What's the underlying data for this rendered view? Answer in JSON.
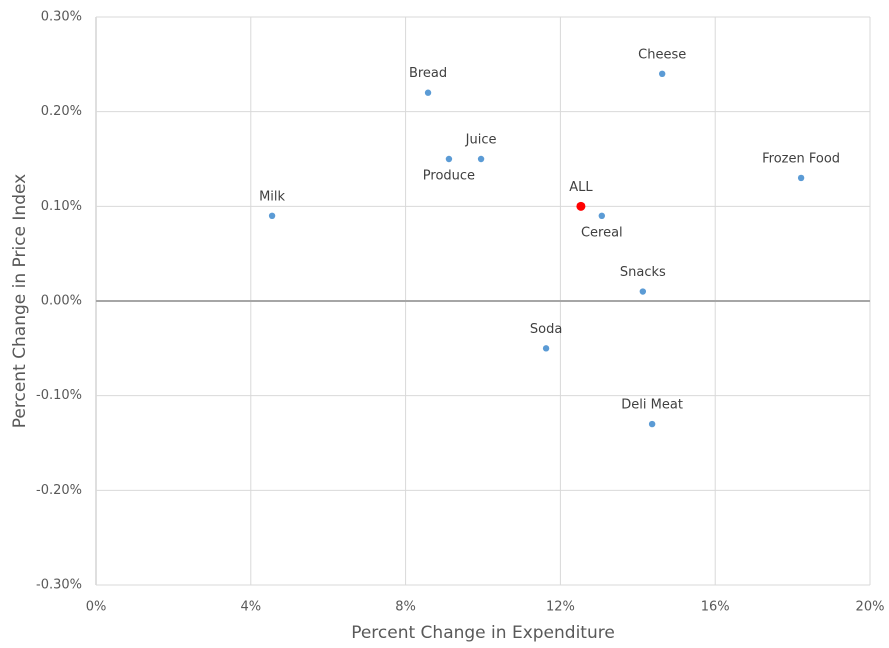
{
  "chart_data": {
    "type": "scatter",
    "x_label": "Percent Change in Expenditure",
    "y_label": "Percent Change in Price Index",
    "points": [
      {
        "label": "Milk",
        "x": 4.55,
        "y": 0.09,
        "color": "#5b9bd5"
      },
      {
        "label": "Bread",
        "x": 8.58,
        "y": 0.22,
        "color": "#5b9bd5"
      },
      {
        "label": "Produce",
        "x": 9.12,
        "y": 0.15,
        "color": "#5b9bd5"
      },
      {
        "label": "Juice",
        "x": 9.95,
        "y": 0.15,
        "color": "#5b9bd5"
      },
      {
        "label": "ALL",
        "x": 12.53,
        "y": 0.1,
        "color": "#ff0000"
      },
      {
        "label": "Cereal",
        "x": 13.07,
        "y": 0.09,
        "color": "#5b9bd5"
      },
      {
        "label": "Cheese",
        "x": 14.63,
        "y": 0.24,
        "color": "#5b9bd5"
      },
      {
        "label": "Frozen Food",
        "x": 18.22,
        "y": 0.13,
        "color": "#5b9bd5"
      },
      {
        "label": "Snacks",
        "x": 14.13,
        "y": 0.01,
        "color": "#5b9bd5"
      },
      {
        "label": "Soda",
        "x": 11.63,
        "y": -0.05,
        "color": "#5b9bd5"
      },
      {
        "label": "Deli Meat",
        "x": 14.37,
        "y": -0.13,
        "color": "#5b9bd5"
      }
    ],
    "xlim": [
      0,
      20
    ],
    "xticks": [
      {
        "value": 0,
        "label": "0%"
      },
      {
        "value": 4,
        "label": "4%"
      },
      {
        "value": 8,
        "label": "8%"
      },
      {
        "value": 12,
        "label": "12%"
      },
      {
        "value": 16,
        "label": "16%"
      },
      {
        "value": 20,
        "label": "20%"
      }
    ],
    "ylim": [
      -0.3,
      0.3
    ],
    "yticks": [
      {
        "value": -0.3,
        "label": "-0.30%"
      },
      {
        "value": -0.2,
        "label": "-0.20%"
      },
      {
        "value": -0.1,
        "label": "-0.10%"
      },
      {
        "value": 0,
        "label": "0.00%"
      },
      {
        "value": 0.1,
        "label": "0.10%"
      },
      {
        "value": 0.2,
        "label": "0.20%"
      },
      {
        "value": 0.3,
        "label": "0.30%"
      }
    ],
    "grid": true
  }
}
